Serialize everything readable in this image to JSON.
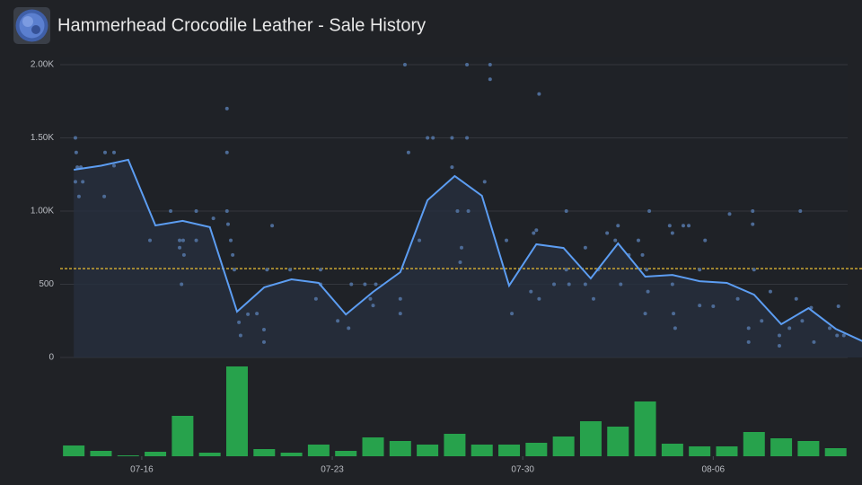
{
  "header": {
    "title": "Hammerhead Crocodile Leather - Sale History"
  },
  "chart_data": [
    {
      "type": "line",
      "x": [
        0.5,
        1.5,
        2.5,
        3.5,
        4.5,
        5.5,
        6.5,
        7.5,
        8.5,
        9.5,
        10.5,
        11.5,
        12.5,
        13.5,
        14.5,
        15.5,
        16.5,
        17.5,
        18.5,
        19.5,
        20.5,
        21.5,
        22.5,
        23.5,
        24.5,
        25.5,
        26.5,
        27.5,
        28.5,
        29.5
      ],
      "values": [
        1282,
        1310,
        1350,
        902,
        933,
        890,
        313,
        479,
        534,
        509,
        294,
        448,
        583,
        1074,
        1239,
        1104,
        491,
        773,
        748,
        540,
        779,
        552,
        564,
        521,
        509,
        429,
        227,
        337,
        196,
        110
      ],
      "color": "#5c9df2",
      "area_color": "#27303e",
      "reference_line": 607,
      "reference_color": "#d9b233",
      "xlim": [
        0,
        29.5
      ],
      "ylim": [
        0,
        2000
      ],
      "xticks": [
        {
          "value": 3,
          "label": "07-16"
        },
        {
          "value": 10,
          "label": "07-23"
        },
        {
          "value": 17,
          "label": "07-30"
        },
        {
          "value": 24,
          "label": "08-06"
        }
      ],
      "yticks": [
        0,
        500,
        {
          "value": 1000,
          "label": "1.00K"
        },
        {
          "value": 1500,
          "label": "1.50K"
        },
        {
          "value": 2000,
          "label": "2.00K"
        }
      ],
      "grid": true
    },
    {
      "type": "scatter",
      "color": "#4d6b96",
      "x": [
        0.56,
        0.59,
        0.63,
        0.76,
        0.56,
        0.83,
        0.69,
        1.62,
        1.65,
        1.98,
        1.98,
        3.3,
        4.06,
        4.39,
        4.52,
        4.39,
        4.55,
        4.46,
        5.0,
        5.0,
        5.63,
        6.13,
        6.13,
        6.13,
        6.17,
        6.27,
        6.34,
        6.4,
        6.57,
        6.63,
        6.9,
        7.23,
        7.49,
        7.49,
        7.79,
        7.6,
        8.45,
        9.4,
        9.57,
        9.57,
        10.2,
        10.6,
        10.7,
        11.2,
        11.4,
        11.5,
        11.6,
        12.5,
        12.5,
        12.67,
        12.8,
        13.2,
        13.5,
        13.7,
        14.4,
        14.4,
        14.6,
        14.7,
        14.75,
        14.95,
        14.95,
        15.0,
        15.8,
        15.8,
        15.6,
        16.4,
        16.6,
        17.3,
        17.4,
        17.6,
        17.5,
        17.6,
        18.15,
        18.6,
        18.6,
        18.7,
        19.3,
        19.3,
        19.6,
        19.77,
        20.1,
        20.4,
        20.5,
        20.6,
        20.9,
        21.25,
        21.4,
        21.55,
        21.5,
        21.6,
        21.65,
        22.4,
        22.5,
        22.5,
        22.54,
        22.6,
        22.9,
        23.1,
        23.5,
        23.5,
        23.7,
        24.0,
        24.6,
        24.9,
        25.45,
        25.45,
        25.3,
        25.3,
        25.5,
        25.78,
        26.1,
        26.43,
        26.43,
        26.8,
        27.05,
        27.2,
        27.27,
        27.6,
        27.7,
        28.28,
        28.6,
        28.55,
        28.8
      ],
      "values": [
        1500,
        1400,
        1300,
        1300,
        1200,
        1200,
        1100,
        1100,
        1400,
        1400,
        1310,
        800,
        1000,
        800,
        800,
        750,
        700,
        500,
        1000,
        800,
        950,
        1700,
        1400,
        1000,
        910,
        800,
        700,
        600,
        240,
        150,
        295,
        300,
        105,
        190,
        900,
        600,
        600,
        400,
        600,
        500,
        250,
        200,
        500,
        500,
        400,
        355,
        500,
        300,
        400,
        2000,
        1400,
        800,
        1500,
        1500,
        1500,
        1300,
        1000,
        650,
        750,
        2000,
        1500,
        1000,
        2000,
        1900,
        1200,
        800,
        300,
        450,
        850,
        1800,
        870,
        400,
        500,
        1000,
        600,
        500,
        750,
        500,
        400,
        600,
        850,
        800,
        900,
        500,
        700,
        800,
        700,
        600,
        300,
        450,
        1000,
        900,
        850,
        500,
        300,
        200,
        900,
        900,
        600,
        355,
        800,
        350,
        980,
        400,
        1000,
        910,
        200,
        105,
        600,
        250,
        450,
        150,
        80,
        200,
        400,
        1000,
        250,
        340,
        105,
        200,
        350,
        150,
        150
      ]
    },
    {
      "type": "bar",
      "color": "#27a24c",
      "ylim": [
        0,
        100
      ],
      "x": [
        0.5,
        1.5,
        2.5,
        3.5,
        4.5,
        5.5,
        6.5,
        7.5,
        8.5,
        9.5,
        10.5,
        11.5,
        12.5,
        13.5,
        14.5,
        15.5,
        16.5,
        17.5,
        18.5,
        19.5,
        20.5,
        21.5,
        22.5,
        23.5,
        24.5,
        25.5,
        26.5,
        27.5,
        28.5
      ],
      "values": [
        12,
        6,
        1,
        5,
        45,
        4,
        100,
        8,
        4,
        13,
        6,
        21,
        17,
        13,
        25,
        13,
        13,
        15,
        22,
        39,
        33,
        61,
        14,
        11,
        11,
        27,
        20,
        17,
        9
      ]
    }
  ]
}
